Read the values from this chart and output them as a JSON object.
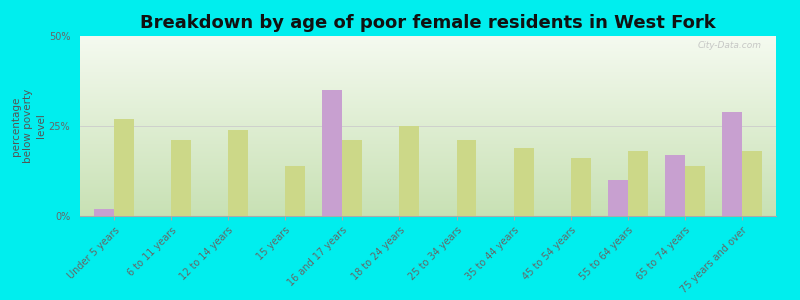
{
  "title": "Breakdown by age of poor female residents in West Fork",
  "ylabel": "percentage\nbelow poverty\nlevel",
  "categories": [
    "Under 5 years",
    "6 to 11 years",
    "12 to 14 years",
    "15 years",
    "16 and 17 years",
    "18 to 24 years",
    "25 to 34 years",
    "35 to 44 years",
    "45 to 54 years",
    "55 to 64 years",
    "65 to 74 years",
    "75 years and over"
  ],
  "west_fork": [
    2,
    0,
    0,
    0,
    35,
    0,
    0,
    0,
    0,
    10,
    17,
    29
  ],
  "arkansas": [
    27,
    21,
    24,
    14,
    21,
    25,
    21,
    19,
    16,
    18,
    14,
    18
  ],
  "west_fork_color": "#c8a0d0",
  "arkansas_color": "#ccd888",
  "ylim": [
    0,
    50
  ],
  "ytick_vals": [
    0,
    25,
    50
  ],
  "ytick_labels": [
    "0%",
    "25%",
    "50%"
  ],
  "bg_top_color": "#f5f8f0",
  "bg_bottom_color": "#d8ecc8",
  "outer_background": "#00eeee",
  "bar_width": 0.35,
  "title_fontsize": 13,
  "axis_label_fontsize": 7.5,
  "tick_label_fontsize": 7,
  "legend_fontsize": 9,
  "watermark": "City-Data.com"
}
